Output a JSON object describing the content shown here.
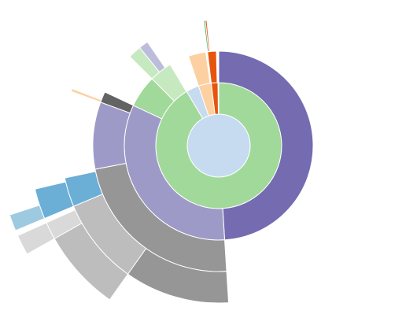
{
  "chart_data": {
    "type": "sunburst",
    "root": {
      "value": 100,
      "color": "#c6dbef",
      "children": [
        {
          "value": 91.5,
          "color": "#a1d99b",
          "children": [
            {
              "value": 49,
              "color": "#756bb1"
            },
            {
              "value": 33,
              "color": "#9e9ac8",
              "children": [
                {
                  "value": 23,
                  "color": "#969696",
                  "children": [
                    {
                      "value": 10.8,
                      "color": "#969696"
                    },
                    {
                      "value": 8.9,
                      "color": "#bdbdbd",
                      "children": [
                        {
                          "value": 7,
                          "color": "#bdbdbd"
                        },
                        {
                          "value": 1.5,
                          "color": "#d9d9d9",
                          "children": [
                            {
                              "value": 1.5,
                              "color": "#d9d9d9"
                            }
                          ]
                        }
                      ]
                    },
                    {
                      "value": 3,
                      "color": "#6baed6",
                      "children": [
                        {
                          "value": 2.6,
                          "color": "#6baed6",
                          "children": [
                            {
                              "value": 1.2,
                              "color": "#9ecae1"
                            }
                          ]
                        }
                      ]
                    }
                  ]
                },
                {
                  "value": 8.6,
                  "color": "#9e9ac8"
                },
                {
                  "value": 1.4,
                  "color": "#636363",
                  "children": [
                    {
                      "value": 0.3,
                      "color": "#fdd0a2"
                    }
                  ]
                }
              ]
            },
            {
              "value": 5.5,
              "color": "#a1d99b"
            },
            {
              "value": 3.9,
              "color": "#c7e9c0",
              "children": [
                {
                  "value": 1.7,
                  "color": "#c7e9c0"
                },
                {
                  "value": 1.2,
                  "color": "#bcbddc"
                }
              ]
            }
          ]
        },
        {
          "value": 3.3,
          "color": "#c6dbef"
        },
        {
          "value": 3.3,
          "color": "#fdd0a2",
          "children": [
            {
              "value": 3.0,
              "color": "#fdd0a2"
            }
          ]
        },
        {
          "value": 1.7,
          "color": "#e6550d",
          "children": [
            {
              "value": 1.5,
              "color": "#e6550d",
              "children": [
                {
                  "value": 0.2,
                  "color": "#31a354"
                },
                {
                  "value": 0.2,
                  "color": "#e6550d"
                }
              ]
            }
          ]
        }
      ]
    }
  }
}
